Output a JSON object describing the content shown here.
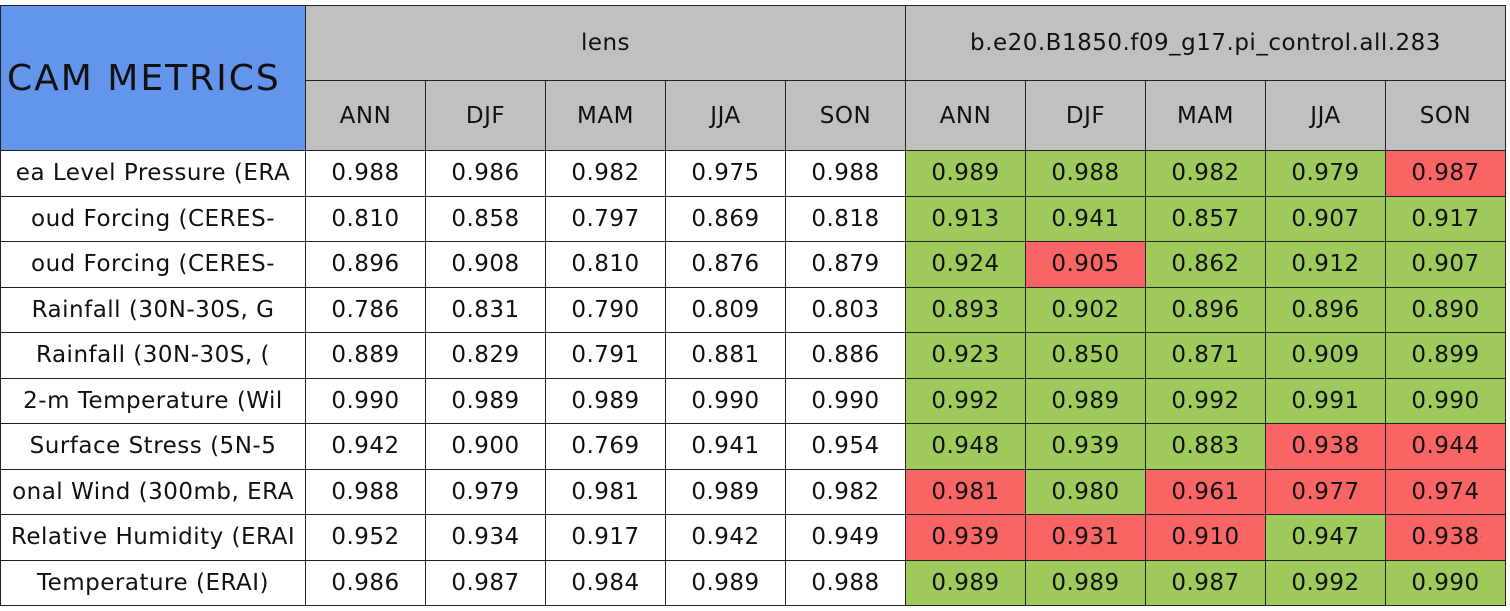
{
  "header": {
    "title": "CAM METRICS",
    "groups": [
      {
        "name": "lens",
        "seasons": [
          "ANN",
          "DJF",
          "MAM",
          "JJA",
          "SON"
        ]
      },
      {
        "name": "b.e20.B1850.f09_g17.pi_control.all.283",
        "seasons": [
          "ANN",
          "DJF",
          "MAM",
          "JJA",
          "SON"
        ]
      }
    ]
  },
  "table": {
    "rows": [
      {
        "label": "ea Level Pressure (ERA",
        "cells": [
          "0.988",
          "0.986",
          "0.982",
          "0.975",
          "0.988",
          "0.989",
          "0.988",
          "0.982",
          "0.979",
          "0.987"
        ],
        "colors": [
          "#ffffff",
          "#ffffff",
          "#ffffff",
          "#ffffff",
          "#ffffff",
          "#9dca5b",
          "#9dca5b",
          "#9dca5b",
          "#9dca5b",
          "#f96565"
        ]
      },
      {
        "label": "oud Forcing (CERES-",
        "cells": [
          "0.810",
          "0.858",
          "0.797",
          "0.869",
          "0.818",
          "0.913",
          "0.941",
          "0.857",
          "0.907",
          "0.917"
        ],
        "colors": [
          "#ffffff",
          "#ffffff",
          "#ffffff",
          "#ffffff",
          "#ffffff",
          "#9dca5b",
          "#9dca5b",
          "#9dca5b",
          "#9dca5b",
          "#9dca5b"
        ]
      },
      {
        "label": "oud Forcing (CERES-",
        "cells": [
          "0.896",
          "0.908",
          "0.810",
          "0.876",
          "0.879",
          "0.924",
          "0.905",
          "0.862",
          "0.912",
          "0.907"
        ],
        "colors": [
          "#ffffff",
          "#ffffff",
          "#ffffff",
          "#ffffff",
          "#ffffff",
          "#9dca5b",
          "#f96565",
          "#9dca5b",
          "#9dca5b",
          "#9dca5b"
        ]
      },
      {
        "label": "Rainfall (30N-30S, G",
        "cells": [
          "0.786",
          "0.831",
          "0.790",
          "0.809",
          "0.803",
          "0.893",
          "0.902",
          "0.896",
          "0.896",
          "0.890"
        ],
        "colors": [
          "#ffffff",
          "#ffffff",
          "#ffffff",
          "#ffffff",
          "#ffffff",
          "#9dca5b",
          "#9dca5b",
          "#9dca5b",
          "#9dca5b",
          "#9dca5b"
        ]
      },
      {
        "label": "Rainfall (30N-30S, (",
        "cells": [
          "0.889",
          "0.829",
          "0.791",
          "0.881",
          "0.886",
          "0.923",
          "0.850",
          "0.871",
          "0.909",
          "0.899"
        ],
        "colors": [
          "#ffffff",
          "#ffffff",
          "#ffffff",
          "#ffffff",
          "#ffffff",
          "#9dca5b",
          "#9dca5b",
          "#9dca5b",
          "#9dca5b",
          "#9dca5b"
        ]
      },
      {
        "label": "2-m Temperature (Wil",
        "cells": [
          "0.990",
          "0.989",
          "0.989",
          "0.990",
          "0.990",
          "0.992",
          "0.989",
          "0.992",
          "0.991",
          "0.990"
        ],
        "colors": [
          "#ffffff",
          "#ffffff",
          "#ffffff",
          "#ffffff",
          "#ffffff",
          "#9dca5b",
          "#9dca5b",
          "#9dca5b",
          "#9dca5b",
          "#9dca5b"
        ]
      },
      {
        "label": "Surface Stress (5N-5",
        "cells": [
          "0.942",
          "0.900",
          "0.769",
          "0.941",
          "0.954",
          "0.948",
          "0.939",
          "0.883",
          "0.938",
          "0.944"
        ],
        "colors": [
          "#ffffff",
          "#ffffff",
          "#ffffff",
          "#ffffff",
          "#ffffff",
          "#9dca5b",
          "#9dca5b",
          "#9dca5b",
          "#f96565",
          "#f96565"
        ]
      },
      {
        "label": "onal Wind (300mb, ERA",
        "cells": [
          "0.988",
          "0.979",
          "0.981",
          "0.989",
          "0.982",
          "0.981",
          "0.980",
          "0.961",
          "0.977",
          "0.974"
        ],
        "colors": [
          "#ffffff",
          "#ffffff",
          "#ffffff",
          "#ffffff",
          "#ffffff",
          "#f96565",
          "#9dca5b",
          "#f96565",
          "#f96565",
          "#f96565"
        ]
      },
      {
        "label": "Relative Humidity (ERAI",
        "cells": [
          "0.952",
          "0.934",
          "0.917",
          "0.942",
          "0.949",
          "0.939",
          "0.931",
          "0.910",
          "0.947",
          "0.938"
        ],
        "colors": [
          "#ffffff",
          "#ffffff",
          "#ffffff",
          "#ffffff",
          "#ffffff",
          "#f96565",
          "#f96565",
          "#f96565",
          "#9dca5b",
          "#f96565"
        ]
      },
      {
        "label": "Temperature (ERAI)",
        "cells": [
          "0.986",
          "0.987",
          "0.984",
          "0.989",
          "0.988",
          "0.989",
          "0.989",
          "0.987",
          "0.992",
          "0.990"
        ],
        "colors": [
          "#ffffff",
          "#ffffff",
          "#ffffff",
          "#ffffff",
          "#ffffff",
          "#9dca5b",
          "#9dca5b",
          "#9dca5b",
          "#9dca5b",
          "#9dca5b"
        ]
      }
    ]
  }
}
